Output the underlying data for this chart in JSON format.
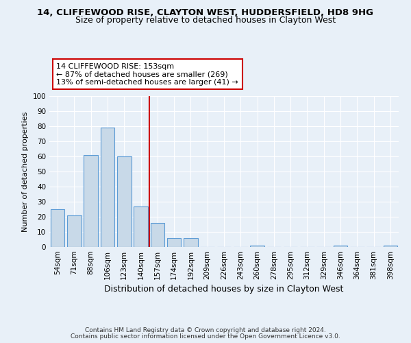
{
  "title1": "14, CLIFFEWOOD RISE, CLAYTON WEST, HUDDERSFIELD, HD8 9HG",
  "title2": "Size of property relative to detached houses in Clayton West",
  "xlabel": "Distribution of detached houses by size in Clayton West",
  "ylabel": "Number of detached properties",
  "categories": [
    "54sqm",
    "71sqm",
    "88sqm",
    "106sqm",
    "123sqm",
    "140sqm",
    "157sqm",
    "174sqm",
    "192sqm",
    "209sqm",
    "226sqm",
    "243sqm",
    "260sqm",
    "278sqm",
    "295sqm",
    "312sqm",
    "329sqm",
    "346sqm",
    "364sqm",
    "381sqm",
    "398sqm"
  ],
  "values": [
    25,
    21,
    61,
    79,
    60,
    27,
    16,
    6,
    6,
    0,
    0,
    0,
    1,
    0,
    0,
    0,
    0,
    1,
    0,
    0,
    1
  ],
  "bar_color": "#c8d9e8",
  "bar_edge_color": "#5b9bd5",
  "vline_color": "#cc0000",
  "vline_index": 6,
  "annotation_line1": "14 CLIFFEWOOD RISE: 153sqm",
  "annotation_line2": "← 87% of detached houses are smaller (269)",
  "annotation_line3": "13% of semi-detached houses are larger (41) →",
  "annotation_box_facecolor": "#ffffff",
  "annotation_box_edgecolor": "#cc0000",
  "ylim": [
    0,
    100
  ],
  "yticks": [
    0,
    10,
    20,
    30,
    40,
    50,
    60,
    70,
    80,
    90,
    100
  ],
  "background_color": "#e8f0f8",
  "grid_color": "#ffffff",
  "footer1": "Contains HM Land Registry data © Crown copyright and database right 2024.",
  "footer2": "Contains public sector information licensed under the Open Government Licence v3.0.",
  "title1_fontsize": 9.5,
  "title2_fontsize": 9,
  "xlabel_fontsize": 9,
  "ylabel_fontsize": 8,
  "annot_fontsize": 8,
  "tick_fontsize": 7.5,
  "footer_fontsize": 6.5
}
